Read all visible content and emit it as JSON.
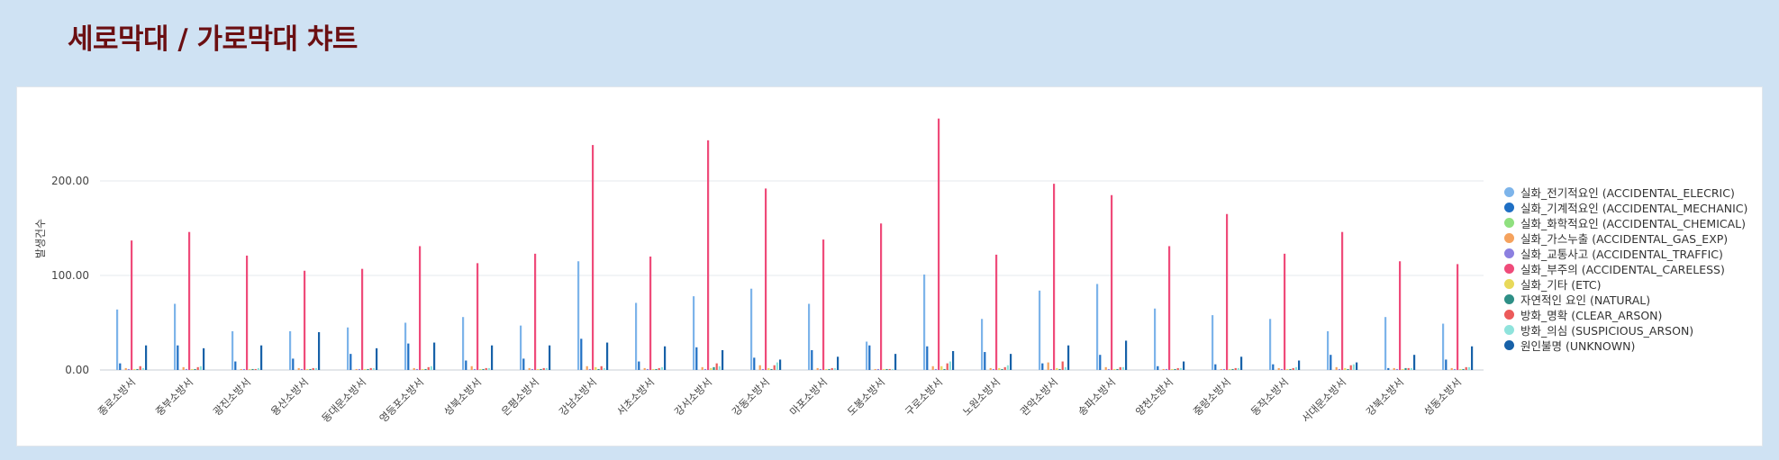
{
  "page": {
    "title": "세로막대 / 가로막대 챠트"
  },
  "chart_data": {
    "type": "bar",
    "ylabel": "발생건수",
    "ylim": [
      0,
      270
    ],
    "yticks": [
      "0.00",
      "100.00",
      "200.00"
    ],
    "grid": true,
    "legend_position": "right",
    "categories": [
      "종로소방서",
      "중부소방서",
      "광진소방서",
      "용산소방서",
      "동대문소방서",
      "영등포소방서",
      "성북소방서",
      "은평소방서",
      "강남소방서",
      "서초소방서",
      "강서소방서",
      "강동소방서",
      "마포소방서",
      "도봉소방서",
      "구로소방서",
      "노원소방서",
      "관악소방서",
      "송파소방서",
      "양천소방서",
      "중랑소방서",
      "동작소방서",
      "서대문소방서",
      "강북소방서",
      "성동소방서"
    ],
    "series": [
      {
        "name": "실화_전기적요인 (ACCIDENTAL_ELECRIC)",
        "color": "#7db4ea",
        "values": [
          64,
          70,
          41,
          41,
          45,
          50,
          56,
          47,
          115,
          71,
          78,
          86,
          70,
          30,
          101,
          54,
          84,
          91,
          65,
          58,
          54,
          41,
          56,
          49
        ]
      },
      {
        "name": "실화_기계적요인 (ACCIDENTAL_MECHANIC)",
        "color": "#1f6fc4",
        "values": [
          7,
          26,
          9,
          12,
          17,
          28,
          10,
          12,
          33,
          9,
          24,
          13,
          21,
          26,
          25,
          19,
          7,
          16,
          4,
          6,
          6,
          16,
          2,
          11
        ]
      },
      {
        "name": "실화_화학적요인 (ACCIDENTAL_CHEMICAL)",
        "color": "#8fe07f",
        "values": [
          0,
          0,
          0,
          0,
          0,
          0,
          0,
          0,
          0,
          0,
          0,
          0,
          0,
          0,
          0,
          0,
          0,
          0,
          0,
          0,
          0,
          0,
          0,
          0
        ]
      },
      {
        "name": "실화_가스누출 (ACCIDENTAL_GAS_EXP)",
        "color": "#f5a25d",
        "values": [
          2,
          3,
          1,
          2,
          1,
          2,
          4,
          2,
          4,
          2,
          3,
          5,
          2,
          1,
          4,
          2,
          8,
          3,
          1,
          1,
          2,
          3,
          2,
          2
        ]
      },
      {
        "name": "실화_교통사고 (ACCIDENTAL_TRAFFIC)",
        "color": "#8c80e0",
        "values": [
          1,
          1,
          1,
          1,
          1,
          1,
          1,
          1,
          1,
          1,
          1,
          1,
          1,
          1,
          1,
          1,
          1,
          1,
          1,
          1,
          1,
          1,
          1,
          1
        ]
      },
      {
        "name": "실화_부주의 (ACCIDENTAL_CARELESS)",
        "color": "#ef4b7a",
        "values": [
          137,
          146,
          121,
          105,
          107,
          131,
          113,
          123,
          238,
          120,
          243,
          192,
          138,
          155,
          266,
          122,
          197,
          185,
          131,
          165,
          123,
          146,
          115,
          112
        ]
      },
      {
        "name": "실화_기타 (ETC)",
        "color": "#e8d95a",
        "values": [
          1,
          1,
          1,
          1,
          1,
          1,
          1,
          1,
          3,
          1,
          2,
          2,
          1,
          1,
          4,
          2,
          2,
          1,
          1,
          1,
          1,
          2,
          1,
          1
        ]
      },
      {
        "name": "자연적인 요인 (NATURAL)",
        "color": "#2e8f86",
        "values": [
          1,
          1,
          1,
          1,
          1,
          1,
          1,
          1,
          1,
          1,
          3,
          1,
          1,
          1,
          1,
          1,
          1,
          1,
          1,
          1,
          1,
          1,
          2,
          1
        ]
      },
      {
        "name": "방화_명확 (CLEAR_ARSON)",
        "color": "#ec5a5a",
        "values": [
          4,
          3,
          1,
          2,
          2,
          3,
          2,
          2,
          4,
          2,
          7,
          5,
          2,
          1,
          7,
          3,
          9,
          3,
          2,
          2,
          2,
          5,
          2,
          3
        ]
      },
      {
        "name": "방화_의심 (SUSPICIOUS_ARSON)",
        "color": "#8fe3dc",
        "values": [
          2,
          4,
          2,
          2,
          2,
          4,
          2,
          2,
          2,
          3,
          4,
          8,
          2,
          1,
          9,
          5,
          3,
          3,
          2,
          2,
          3,
          6,
          2,
          3
        ]
      },
      {
        "name": "원인불명 (UNKNOWN)",
        "color": "#1761a8",
        "values": [
          26,
          23,
          26,
          40,
          23,
          29,
          26,
          26,
          29,
          25,
          21,
          11,
          14,
          17,
          20,
          17,
          26,
          31,
          9,
          14,
          10,
          8,
          16,
          25
        ]
      }
    ]
  }
}
